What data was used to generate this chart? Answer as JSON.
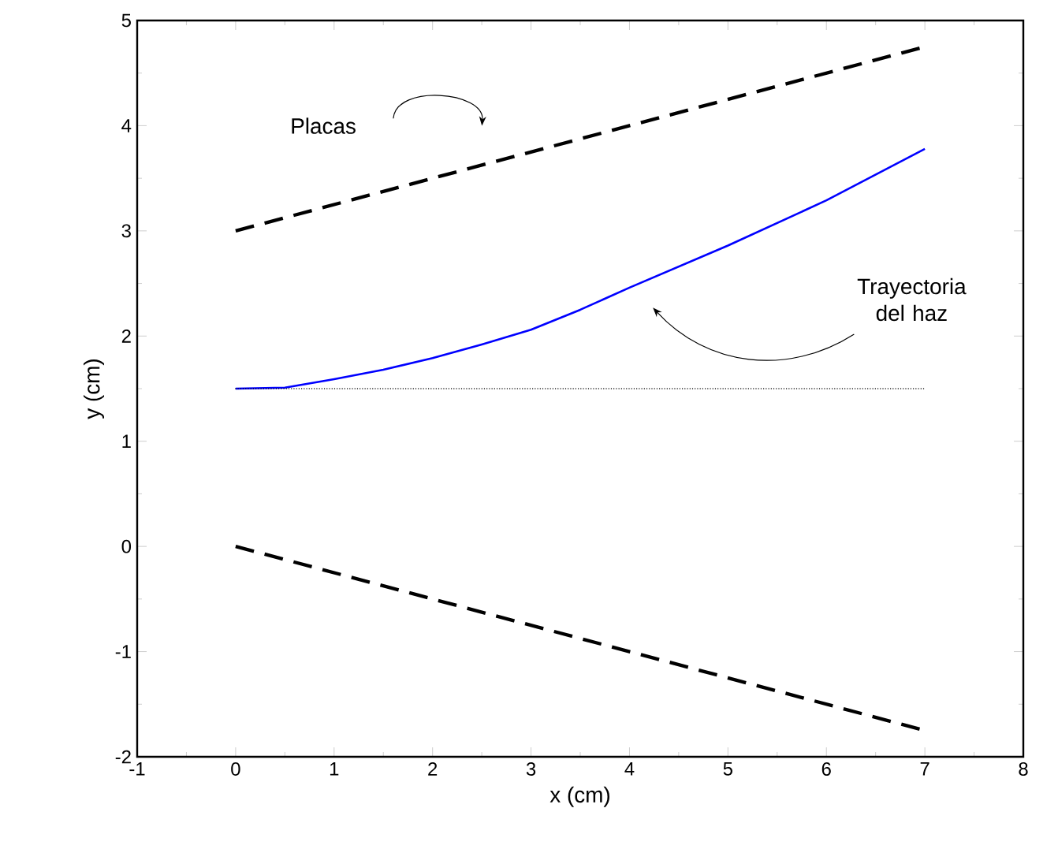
{
  "chart_data": {
    "type": "line",
    "xlabel": "x (cm)",
    "ylabel": "y (cm)",
    "xlim": [
      -1,
      8
    ],
    "ylim": [
      -2,
      5
    ],
    "xticks": [
      -1,
      0,
      1,
      2,
      3,
      4,
      5,
      6,
      7,
      8
    ],
    "yticks": [
      -2,
      -1,
      0,
      1,
      2,
      3,
      4,
      5
    ],
    "grid": false,
    "legend": false,
    "series": [
      {
        "color": "#000000",
        "line_style": "dashed",
        "x": [
          0,
          7
        ],
        "values": [
          3,
          4.75
        ]
      },
      {
        "color": "#000000",
        "line_style": "dashed",
        "x": [
          0,
          7
        ],
        "values": [
          0,
          -1.75
        ]
      },
      {
        "color": "#0000ff",
        "line_style": "solid",
        "x": [
          0,
          0.5,
          1,
          1.5,
          2,
          2.5,
          3,
          3.5,
          4,
          5,
          6,
          7
        ],
        "values": [
          1.5,
          1.51,
          1.59,
          1.68,
          1.79,
          1.92,
          2.06,
          2.25,
          2.46,
          2.86,
          3.29,
          3.78
        ]
      },
      {
        "color": "#000000",
        "line_style": "dotted",
        "x": [
          0,
          7
        ],
        "values": [
          1.5,
          1.5
        ]
      }
    ],
    "annotations": [
      "Placas",
      "Trayectoria del haz"
    ]
  }
}
